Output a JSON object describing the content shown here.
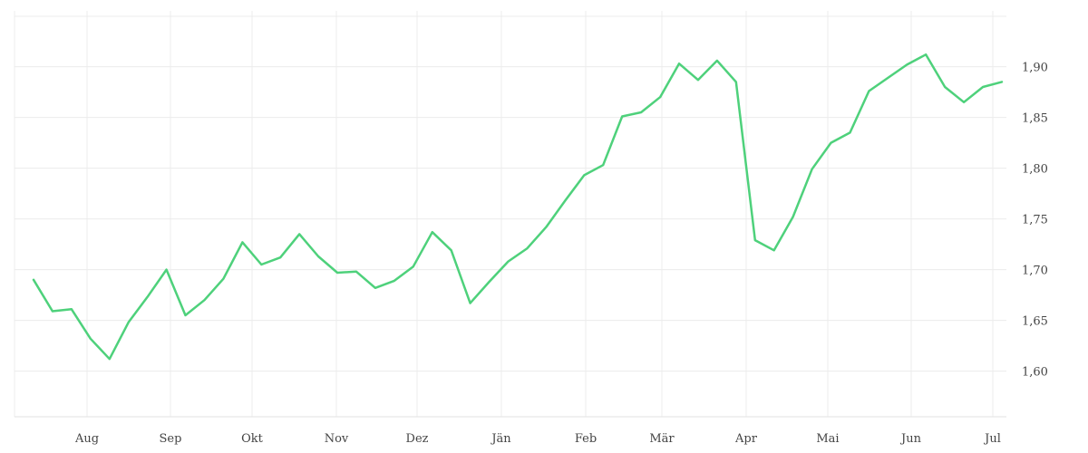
{
  "chart_data": {
    "type": "line",
    "title": "",
    "xlabel": "",
    "ylabel": "",
    "x_tick_labels": [
      "Aug",
      "Sep",
      "Okt",
      "Nov",
      "Dez",
      "Jän",
      "Feb",
      "Mär",
      "Apr",
      "Mai",
      "Jun",
      "Jul"
    ],
    "y_ticks": [
      1.6,
      1.65,
      1.7,
      1.75,
      1.8,
      1.85,
      1.9
    ],
    "y_tick_labels": [
      "1,60",
      "1,65",
      "1,70",
      "1,75",
      "1,80",
      "1,85",
      "1,90"
    ],
    "ylim": [
      1.555,
      1.955
    ],
    "grid": true,
    "y_axis_side": "right",
    "series": [
      {
        "color": "#4ed17b",
        "values": [
          1.69,
          1.659,
          1.661,
          1.632,
          1.612,
          1.648,
          1.673,
          1.7,
          1.655,
          1.67,
          1.691,
          1.727,
          1.705,
          1.712,
          1.735,
          1.713,
          1.697,
          1.698,
          1.682,
          1.689,
          1.703,
          1.737,
          1.719,
          1.667,
          1.688,
          1.708,
          1.721,
          1.742,
          1.768,
          1.793,
          1.803,
          1.851,
          1.855,
          1.87,
          1.903,
          1.887,
          1.906,
          1.885,
          1.729,
          1.719,
          1.752,
          1.799,
          1.825,
          1.835,
          1.876,
          1.889,
          1.902,
          1.912,
          1.88,
          1.865,
          1.88,
          1.885
        ]
      }
    ]
  }
}
